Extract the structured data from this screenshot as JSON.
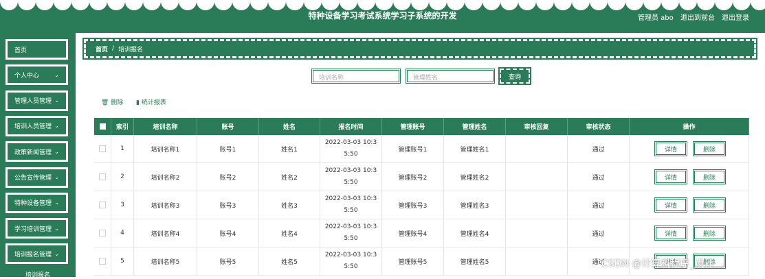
{
  "header": {
    "title": "特种设备学习考试系统学习子系统的开发",
    "user": "管理员 abo",
    "links": [
      "退出到前台",
      "退出登录"
    ]
  },
  "sidebar": {
    "items": [
      "首页",
      "个人中心",
      "管理人员管理",
      "培训人员管理",
      "政策新闻管理",
      "公告宣传管理",
      "特种设备管理",
      "学习培训管理",
      "培训报名管理"
    ],
    "sub_item": "培训报名"
  },
  "breadcrumb": [
    "首页",
    "/",
    "培训报名"
  ],
  "search": {
    "placeholders": [
      "培训名称",
      "管理姓名"
    ],
    "button": "查询"
  },
  "actions": [
    "删除",
    "统计报表"
  ],
  "table": {
    "columns": [
      "索引",
      "培训名称",
      "账号",
      "姓名",
      "报名时间",
      "管理账号",
      "管理姓名",
      "审核回复",
      "审核状态",
      "操作"
    ],
    "rows": [
      {
        "index": "1",
        "name": "培训名称1",
        "account": "账号1",
        "person": "姓名1",
        "time": "2022-03-03 10:35:50",
        "mgr_account": "管理账号1",
        "mgr_name": "管理姓名1",
        "status": "通过"
      },
      {
        "index": "2",
        "name": "培训名称2",
        "account": "账号2",
        "person": "姓名2",
        "time": "2022-03-03 10:35:50",
        "mgr_account": "管理账号2",
        "mgr_name": "管理姓名2",
        "status": "通过"
      },
      {
        "index": "3",
        "name": "培训名称3",
        "account": "账号3",
        "person": "姓名3",
        "time": "2022-03-03 10:35:50",
        "mgr_account": "管理账号3",
        "mgr_name": "管理姓名3",
        "status": "通过"
      },
      {
        "index": "4",
        "name": "培训名称4",
        "account": "账号4",
        "person": "姓名4",
        "time": "2022-03-03 10:35:50",
        "mgr_account": "管理账号4",
        "mgr_name": "管理姓名4",
        "status": "通过"
      },
      {
        "index": "5",
        "name": "培训名称5",
        "account": "账号5",
        "person": "姓名5",
        "time": "2022-03-03 10:35:50",
        "mgr_account": "管理账号5",
        "mgr_name": "管理姓名5",
        "status": "通过"
      }
    ],
    "row_actions": [
      "详情",
      "删除"
    ]
  },
  "watermark": "CSDN @计算机程序_设计"
}
